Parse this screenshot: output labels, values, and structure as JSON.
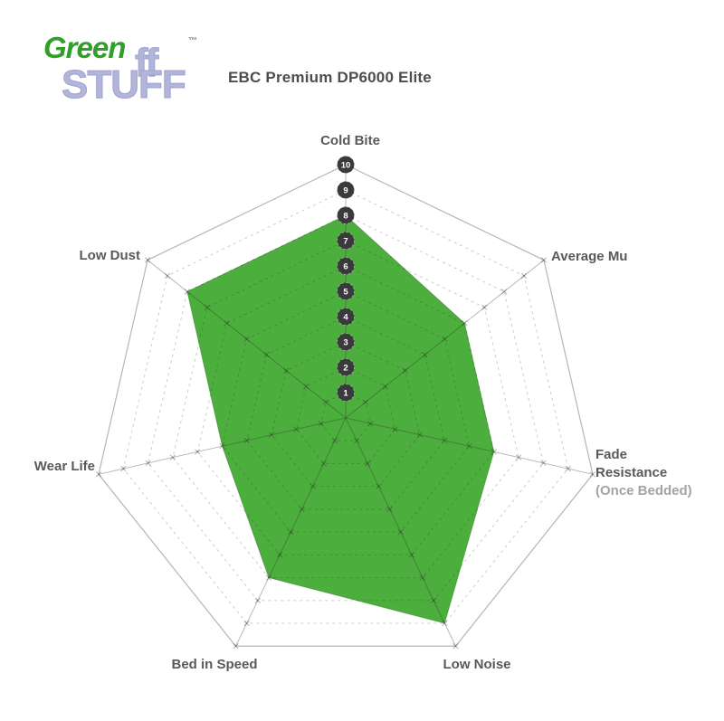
{
  "logo": {
    "green": "Green",
    "stuff": "STUFF",
    "stuff_tail": "ff",
    "trademark": "™"
  },
  "title": "EBC Premium DP6000 Elite",
  "axis_labels": {
    "cold_bite": "Cold Bite",
    "average_mu": "Average Mu",
    "fade_line1": "Fade",
    "fade_line2": "Resistance",
    "fade_line3": "(Once Bedded)",
    "low_noise": "Low Noise",
    "bed_in_speed": "Bed in Speed",
    "wear_life": "Wear Life",
    "low_dust": "Low Dust"
  },
  "chart_data": {
    "type": "radar",
    "title": "EBC Premium DP6000 Elite",
    "categories": [
      "Cold Bite",
      "Average Mu",
      "Fade Resistance (Once Bedded)",
      "Low Noise",
      "Bed in Speed",
      "Wear Life",
      "Low Dust"
    ],
    "series": [
      {
        "name": "EBC Premium DP6000 Elite",
        "values": [
          8,
          6,
          6,
          9,
          7,
          5,
          8
        ]
      }
    ],
    "scale": {
      "min": 0,
      "max": 10,
      "ring_step": 1,
      "tick_labels": [
        "1",
        "2",
        "3",
        "4",
        "5",
        "6",
        "7",
        "8",
        "9",
        "10"
      ],
      "tick_axis": "Cold Bite"
    },
    "layout_hints": {
      "start_axis": "top",
      "direction": "clockwise",
      "rings": "dashed heptagons, outer ring solid",
      "spokes": "solid with x cross-marks at each ring",
      "legend": "none"
    },
    "colors": {
      "fill_green": "#4cae3c",
      "grid_gray": "#b9babc",
      "tick_circle_fill": "#3a3a3c",
      "tick_circle_text": "#ffffff",
      "label_dark": "#58595b",
      "label_light": "#a2a3a6"
    }
  }
}
